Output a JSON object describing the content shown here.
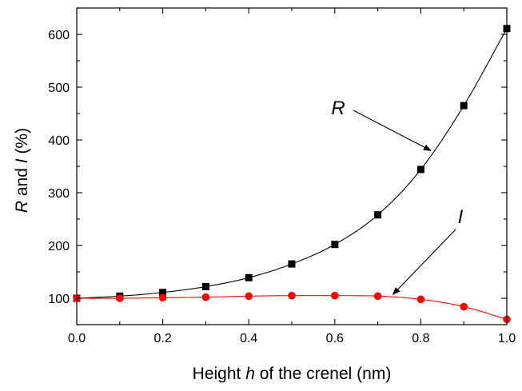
{
  "chart_data": {
    "type": "line",
    "xlabel": {
      "pre": "Height ",
      "var": "h",
      "post": " of the crenel (nm)"
    },
    "ylabel": {
      "v1": "R",
      "mid": " and ",
      "v2": "I",
      "post": " (%)"
    },
    "xlim": [
      0,
      1.0
    ],
    "ylim": [
      50,
      650
    ],
    "x_ticks": [
      "0.0",
      "0.2",
      "0.4",
      "0.6",
      "0.8",
      "1.0"
    ],
    "y_ticks": [
      "100",
      "200",
      "300",
      "400",
      "500",
      "600"
    ],
    "x": [
      0.0,
      0.1,
      0.2,
      0.3,
      0.4,
      0.5,
      0.6,
      0.7,
      0.8,
      0.9,
      1.0
    ],
    "series": [
      {
        "name": "R",
        "marker": "square",
        "color": "#000000",
        "values": [
          100,
          104,
          111,
          122,
          139,
          165,
          202,
          258,
          344,
          465,
          611
        ]
      },
      {
        "name": "I",
        "marker": "circle",
        "color": "#ff0000",
        "values": [
          100,
          100,
          101,
          102,
          104,
          105,
          105,
          104,
          98,
          84,
          60
        ]
      }
    ],
    "annotations": [
      {
        "text": "R",
        "series": "R",
        "points_to_x": 0.83
      },
      {
        "text": "I",
        "series": "I",
        "points_to_x": 0.73
      }
    ],
    "grid": false,
    "legend": "none"
  }
}
